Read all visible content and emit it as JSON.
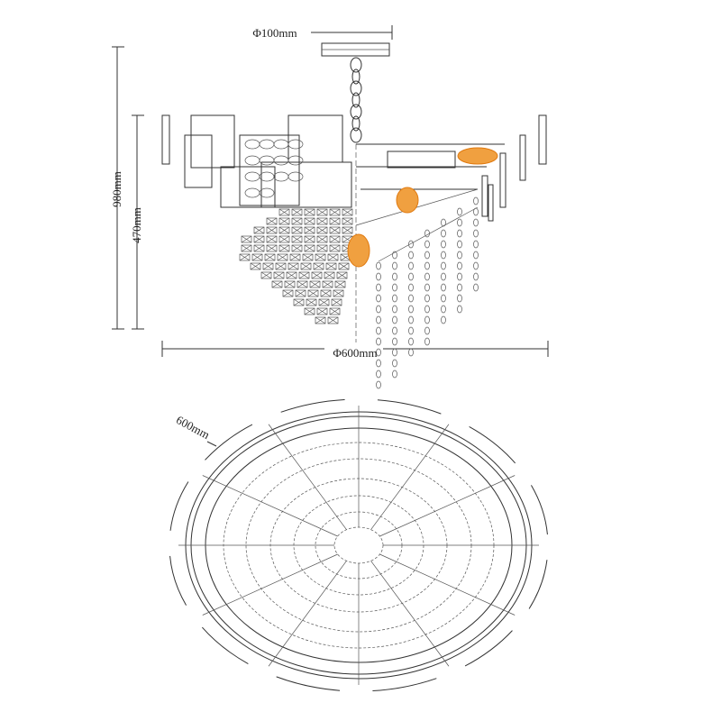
{
  "dimensions": {
    "plate_diameter": "Φ100mm",
    "total_height": "980mm",
    "body_height": "470mm",
    "diameter": "Φ600mm",
    "top_view_diameter": "600mm"
  }
}
